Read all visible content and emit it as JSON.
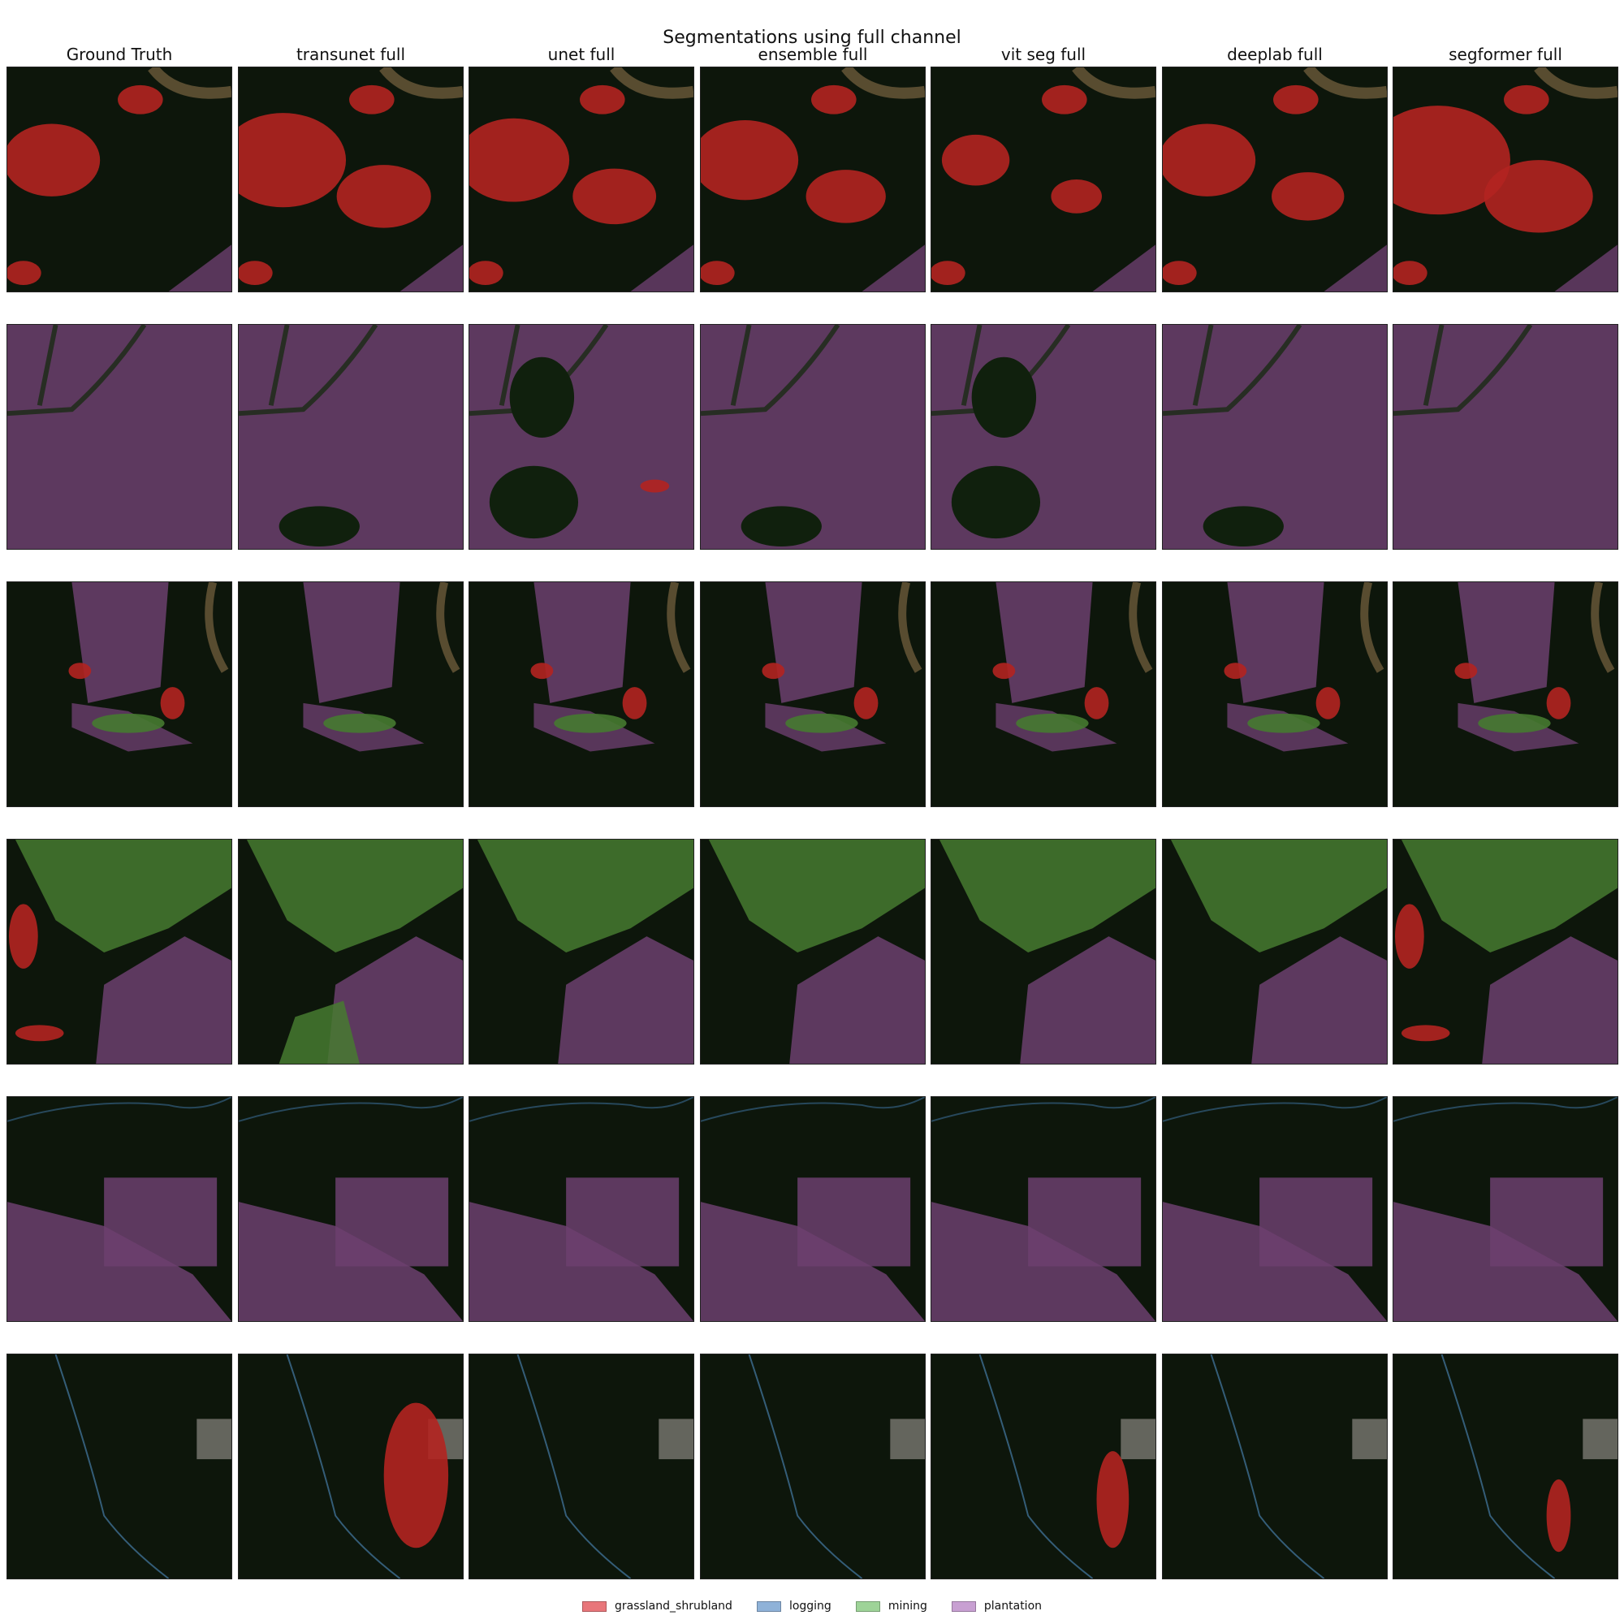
{
  "title": "Segmentations using full channel",
  "columns": [
    "Ground Truth",
    "transunet full",
    "unet full",
    "ensemble full",
    "vit seg full",
    "deeplab full",
    "segformer full"
  ],
  "legend": [
    {
      "label": "grassland_shrubland",
      "color": "#e8767a"
    },
    {
      "label": "logging",
      "color": "#8fb2d8"
    },
    {
      "label": "mining",
      "color": "#9ed398"
    },
    {
      "label": "plantation",
      "color": "#c8a0d2"
    }
  ],
  "class_colors": {
    "background": "#0e170c",
    "grassland_shrubland": "#b32420",
    "plantation": "#6c3f6e",
    "mining": "#467a30",
    "logging": "#3e6f94"
  }
}
